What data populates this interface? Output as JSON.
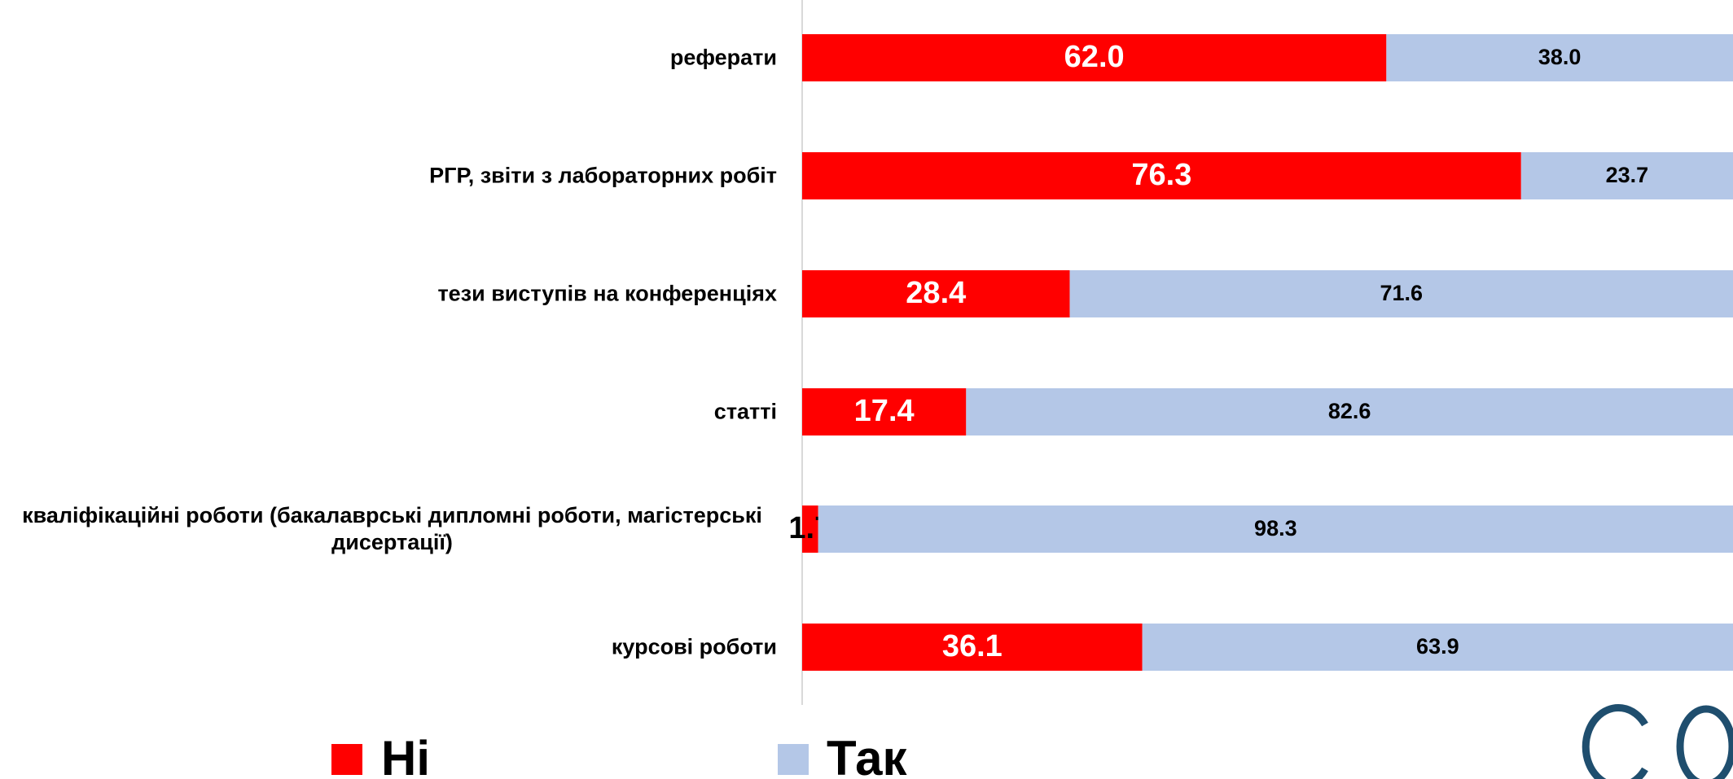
{
  "chart_data": {
    "type": "stacked-bar-horizontal",
    "categories": [
      "реферати",
      "РГР, звіти з лабораторних робіт",
      "тези виступів на конференціях",
      "статті",
      "кваліфікаційні роботи (бакалаврські дипломні роботи, магістерські дисертації)",
      "курсові роботи"
    ],
    "series": [
      {
        "name": "Ні",
        "color": "#ff0000",
        "values": [
          62.0,
          76.3,
          28.4,
          17.4,
          1.7,
          36.1
        ],
        "value_labels": [
          "62.0",
          "76.3",
          "28.4",
          "17.4",
          "1.7",
          "36.1"
        ]
      },
      {
        "name": "Так",
        "color": "#b4c7e7",
        "values": [
          38.0,
          23.7,
          71.6,
          82.6,
          98.3,
          63.9
        ],
        "value_labels": [
          "38.0",
          "23.7",
          "71.6",
          "82.6",
          "98.3",
          "63.9"
        ]
      }
    ],
    "xlim": [
      0,
      100
    ]
  }
}
